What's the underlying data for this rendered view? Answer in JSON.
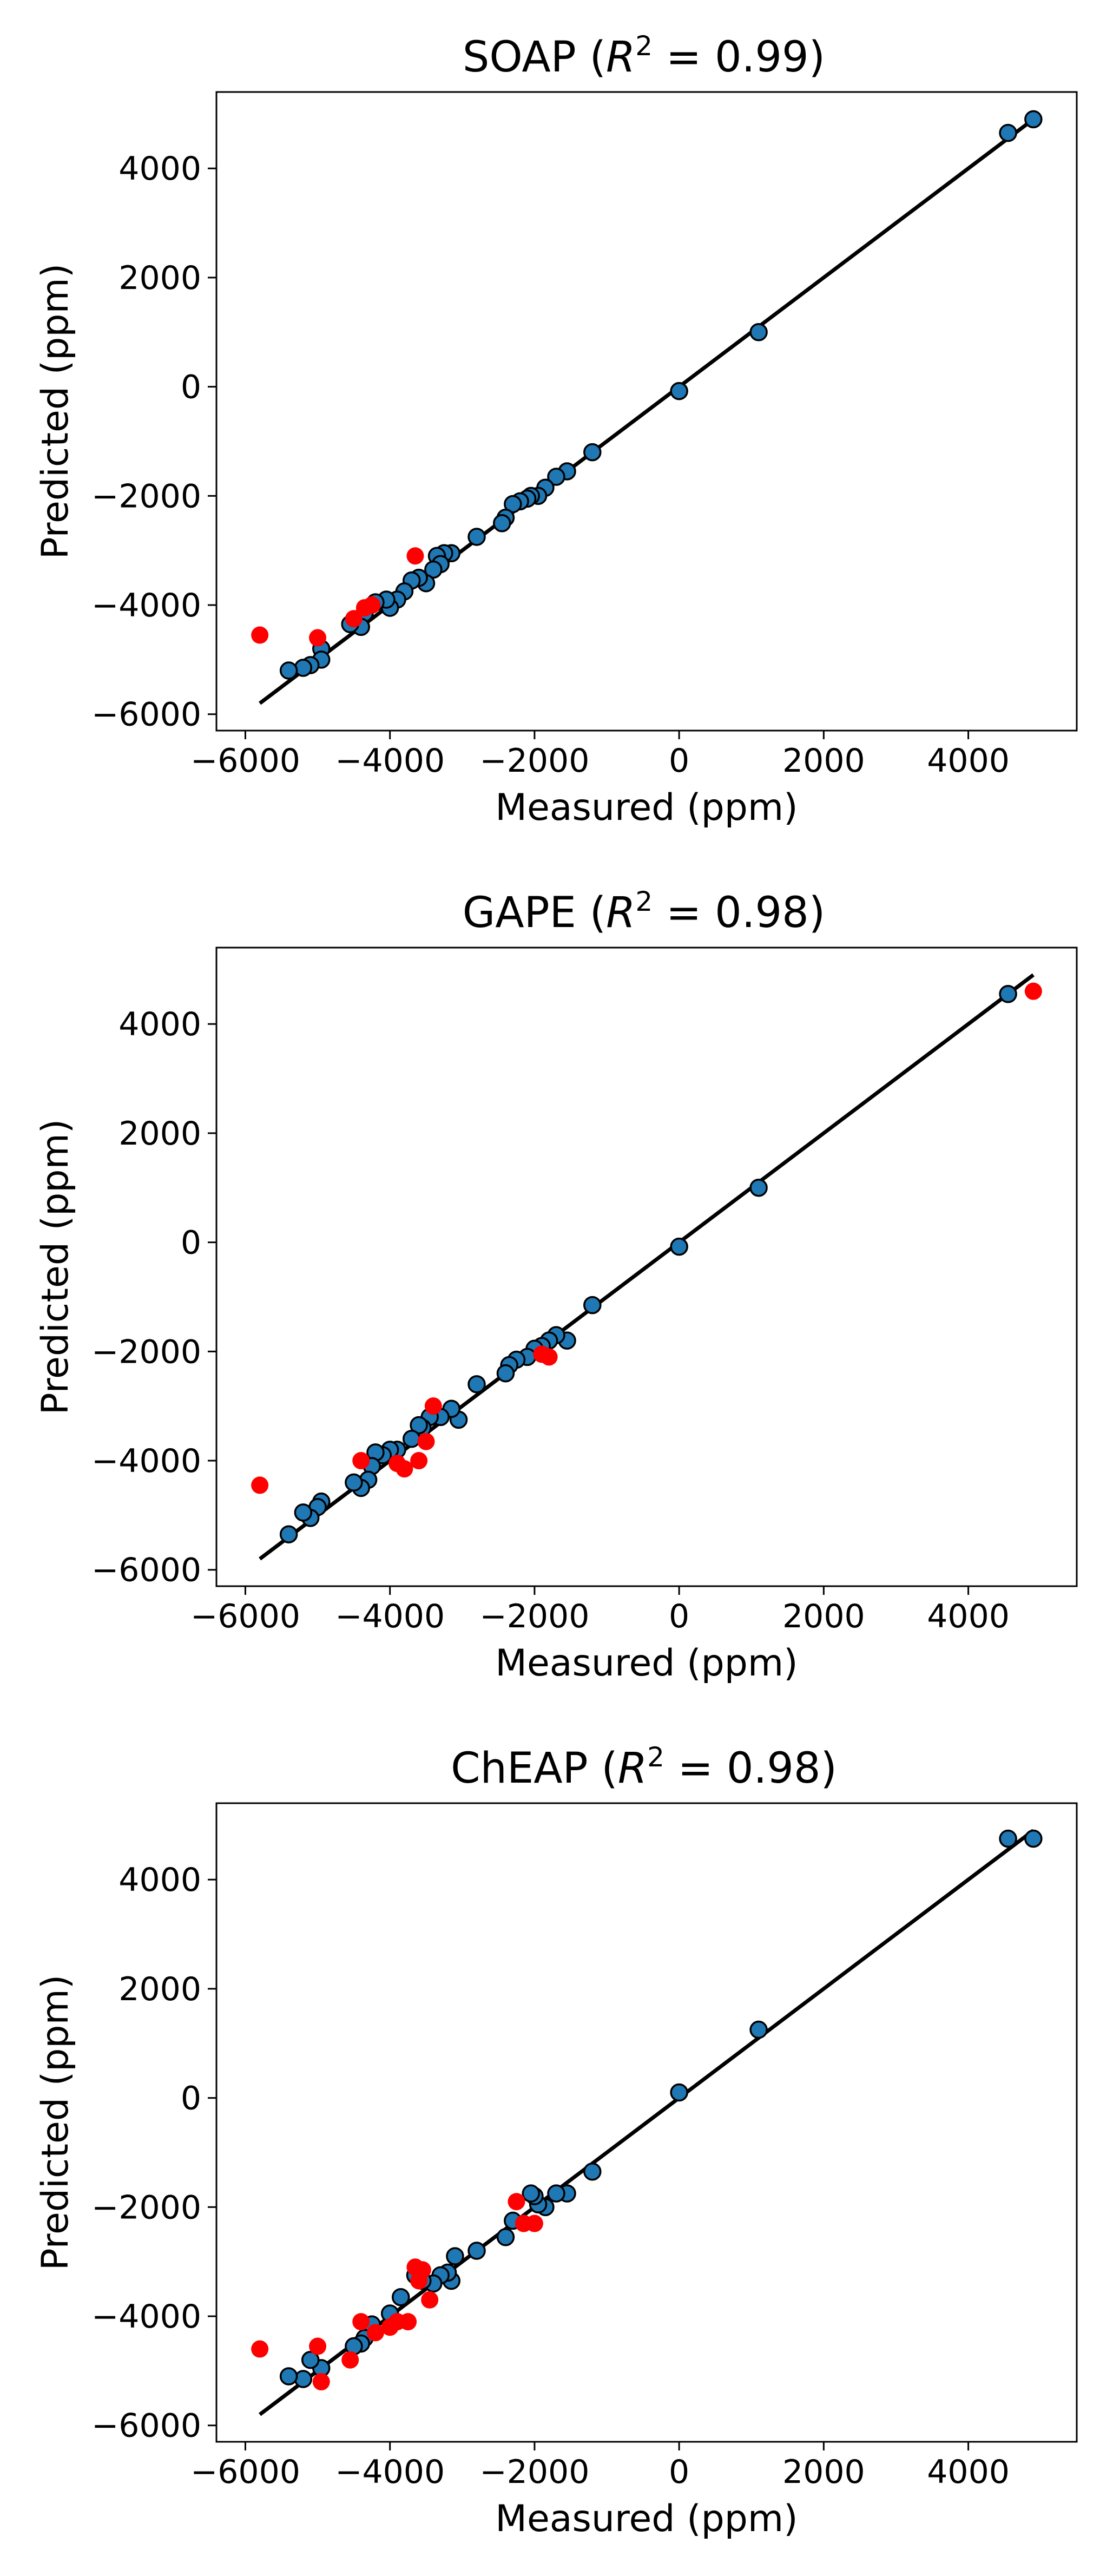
{
  "chart_data": [
    {
      "type": "scatter",
      "title_base": "SOAP (",
      "title_r2_sym": "R",
      "title_r2_sup": "2",
      "title_r2_val": " = 0.99)",
      "xlabel": "Measured (ppm)",
      "ylabel": "Predicted (ppm)",
      "xlim": [
        -6400,
        5500
      ],
      "ylim": [
        -6300,
        5400
      ],
      "xticks": [
        -6000,
        -4000,
        -2000,
        0,
        2000,
        4000
      ],
      "yticks": [
        -6000,
        -4000,
        -2000,
        0,
        2000,
        4000
      ],
      "fit_line": {
        "x": [
          -5800,
          4900
        ],
        "y": [
          -5800,
          4900
        ]
      },
      "colors": {
        "blue": "#1f77b4",
        "red": "#ff0000"
      },
      "series": [
        {
          "color": "blue",
          "points": [
            [
              4900,
              4900
            ],
            [
              4550,
              4650
            ],
            [
              1100,
              1000
            ],
            [
              0,
              -80
            ],
            [
              -1200,
              -1200
            ],
            [
              -1550,
              -1550
            ],
            [
              -1700,
              -1650
            ],
            [
              -1850,
              -1850
            ],
            [
              -1950,
              -2000
            ],
            [
              -2050,
              -2000
            ],
            [
              -2100,
              -2050
            ],
            [
              -2200,
              -2100
            ],
            [
              -2300,
              -2150
            ],
            [
              -2400,
              -2400
            ],
            [
              -2450,
              -2500
            ],
            [
              -2800,
              -2750
            ],
            [
              -3150,
              -3050
            ],
            [
              -3250,
              -3050
            ],
            [
              -3350,
              -3100
            ],
            [
              -3300,
              -3250
            ],
            [
              -3400,
              -3350
            ],
            [
              -3500,
              -3600
            ],
            [
              -3600,
              -3500
            ],
            [
              -3700,
              -3550
            ],
            [
              -3800,
              -3750
            ],
            [
              -3900,
              -3900
            ],
            [
              -4000,
              -4050
            ],
            [
              -4050,
              -3900
            ],
            [
              -4200,
              -3950
            ],
            [
              -4350,
              -4150
            ],
            [
              -4400,
              -4400
            ],
            [
              -4550,
              -4350
            ],
            [
              -4950,
              -4800
            ],
            [
              -4950,
              -5000
            ],
            [
              -5100,
              -5100
            ],
            [
              -5200,
              -5150
            ],
            [
              -5400,
              -5200
            ]
          ]
        },
        {
          "color": "red",
          "points": [
            [
              -5800,
              -4550
            ],
            [
              -5000,
              -4600
            ],
            [
              -4500,
              -4250
            ],
            [
              -4350,
              -4050
            ],
            [
              -4250,
              -4000
            ],
            [
              -3650,
              -3100
            ]
          ]
        }
      ]
    },
    {
      "type": "scatter",
      "title_base": "GAPE (",
      "title_r2_sym": "R",
      "title_r2_sup": "2",
      "title_r2_val": " = 0.98)",
      "xlabel": "Measured (ppm)",
      "ylabel": "Predicted (ppm)",
      "xlim": [
        -6400,
        5500
      ],
      "ylim": [
        -6300,
        5400
      ],
      "xticks": [
        -6000,
        -4000,
        -2000,
        0,
        2000,
        4000
      ],
      "yticks": [
        -6000,
        -4000,
        -2000,
        0,
        2000,
        4000
      ],
      "fit_line": {
        "x": [
          -5800,
          4900
        ],
        "y": [
          -5800,
          4900
        ]
      },
      "colors": {
        "blue": "#1f77b4",
        "red": "#ff0000"
      },
      "series": [
        {
          "color": "blue",
          "points": [
            [
              4550,
              4550
            ],
            [
              1100,
              1000
            ],
            [
              0,
              -80
            ],
            [
              -1200,
              -1150
            ],
            [
              -1550,
              -1800
            ],
            [
              -1700,
              -1700
            ],
            [
              -1800,
              -1800
            ],
            [
              -1900,
              -1900
            ],
            [
              -2000,
              -1950
            ],
            [
              -2100,
              -2100
            ],
            [
              -2250,
              -2150
            ],
            [
              -2350,
              -2250
            ],
            [
              -2400,
              -2400
            ],
            [
              -2800,
              -2600
            ],
            [
              -3050,
              -3250
            ],
            [
              -3150,
              -3050
            ],
            [
              -3300,
              -3200
            ],
            [
              -3450,
              -3200
            ],
            [
              -3550,
              -3400
            ],
            [
              -3600,
              -3350
            ],
            [
              -3700,
              -3600
            ],
            [
              -3900,
              -3800
            ],
            [
              -4000,
              -3800
            ],
            [
              -4100,
              -3900
            ],
            [
              -4200,
              -3850
            ],
            [
              -4250,
              -4100
            ],
            [
              -4300,
              -4350
            ],
            [
              -4400,
              -4500
            ],
            [
              -4500,
              -4400
            ],
            [
              -4950,
              -4750
            ],
            [
              -5000,
              -4850
            ],
            [
              -5100,
              -5050
            ],
            [
              -5200,
              -4950
            ],
            [
              -5400,
              -5350
            ]
          ]
        },
        {
          "color": "red",
          "points": [
            [
              -5800,
              -4450
            ],
            [
              4900,
              4600
            ],
            [
              -1800,
              -2100
            ],
            [
              -1900,
              -2050
            ],
            [
              -3400,
              -3000
            ],
            [
              -3500,
              -3650
            ],
            [
              -3600,
              -4000
            ],
            [
              -3800,
              -4150
            ],
            [
              -3900,
              -4050
            ],
            [
              -4400,
              -4000
            ]
          ]
        }
      ]
    },
    {
      "type": "scatter",
      "title_base": "ChEAP (",
      "title_r2_sym": "R",
      "title_r2_sup": "2",
      "title_r2_val": " = 0.98)",
      "xlabel": "Measured (ppm)",
      "ylabel": "Predicted (ppm)",
      "xlim": [
        -6400,
        5500
      ],
      "ylim": [
        -6300,
        5400
      ],
      "xticks": [
        -6000,
        -4000,
        -2000,
        0,
        2000,
        4000
      ],
      "yticks": [
        -6000,
        -4000,
        -2000,
        0,
        2000,
        4000
      ],
      "fit_line": {
        "x": [
          -5800,
          4900
        ],
        "y": [
          -5800,
          4900
        ]
      },
      "colors": {
        "blue": "#1f77b4",
        "red": "#ff0000"
      },
      "series": [
        {
          "color": "blue",
          "points": [
            [
              4900,
              4750
            ],
            [
              4550,
              4750
            ],
            [
              1100,
              1250
            ],
            [
              0,
              100
            ],
            [
              -1200,
              -1350
            ],
            [
              -1550,
              -1750
            ],
            [
              -1700,
              -1750
            ],
            [
              -1850,
              -2000
            ],
            [
              -1950,
              -1950
            ],
            [
              -2000,
              -1800
            ],
            [
              -2050,
              -1750
            ],
            [
              -2300,
              -2250
            ],
            [
              -2400,
              -2550
            ],
            [
              -2800,
              -2800
            ],
            [
              -3100,
              -2900
            ],
            [
              -3150,
              -3350
            ],
            [
              -3200,
              -3200
            ],
            [
              -3300,
              -3250
            ],
            [
              -3400,
              -3400
            ],
            [
              -3550,
              -3350
            ],
            [
              -3650,
              -3250
            ],
            [
              -3850,
              -3650
            ],
            [
              -4000,
              -3950
            ],
            [
              -4250,
              -4150
            ],
            [
              -4350,
              -4400
            ],
            [
              -4400,
              -4500
            ],
            [
              -4500,
              -4550
            ],
            [
              -4950,
              -4950
            ],
            [
              -5100,
              -4800
            ],
            [
              -5200,
              -5150
            ],
            [
              -5400,
              -5100
            ]
          ]
        },
        {
          "color": "red",
          "points": [
            [
              -5800,
              -4600
            ],
            [
              -5000,
              -4550
            ],
            [
              -4950,
              -5200
            ],
            [
              -4550,
              -4800
            ],
            [
              -4400,
              -4100
            ],
            [
              -4200,
              -4300
            ],
            [
              -4000,
              -4200
            ],
            [
              -3900,
              -4100
            ],
            [
              -3750,
              -4100
            ],
            [
              -3650,
              -3100
            ],
            [
              -3600,
              -3350
            ],
            [
              -3550,
              -3150
            ],
            [
              -3450,
              -3700
            ],
            [
              -2250,
              -1900
            ],
            [
              -2150,
              -2300
            ],
            [
              -2000,
              -2300
            ]
          ]
        }
      ]
    }
  ]
}
